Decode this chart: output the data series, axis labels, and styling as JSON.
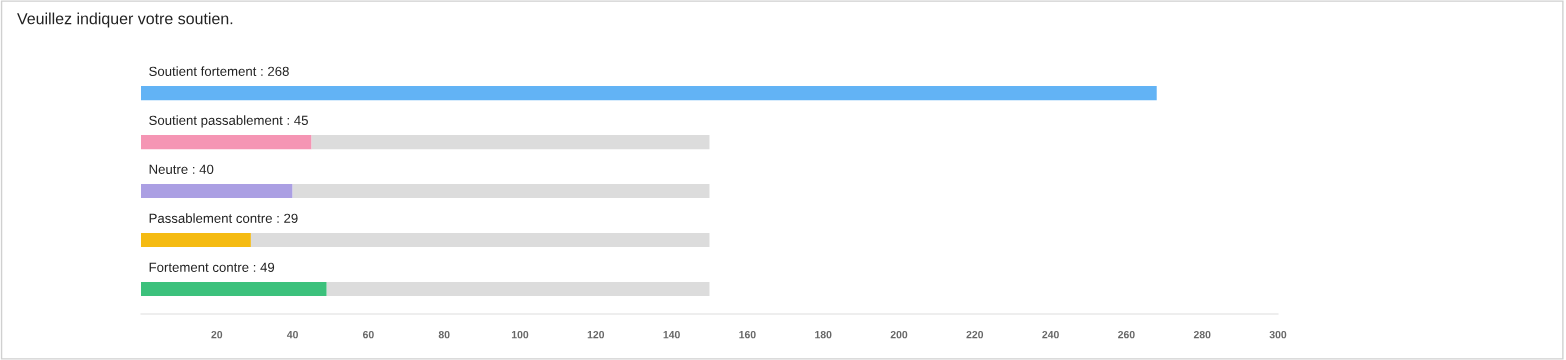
{
  "chart_data": {
    "type": "bar",
    "orientation": "horizontal",
    "title": "Veuillez indiquer votre soutien.",
    "categories": [
      "Soutient fortement : 268",
      "Soutient passablement : 45",
      "Neutre : 40",
      "Passablement contre : 29",
      "Fortement contre : 49"
    ],
    "series": [
      {
        "colors": [
          "#62b3f5",
          "#f595b4",
          "#ab9fe3",
          "#f5bb12",
          "#3cc17c"
        ],
        "values": [
          268,
          45,
          40,
          29,
          49
        ]
      },
      {
        "color": "#dcdcdc",
        "values": [
          null,
          105,
          110,
          121,
          101
        ]
      }
    ],
    "stacked": true,
    "xlim": [
      0,
      300
    ],
    "xticks": [
      20,
      40,
      60,
      80,
      100,
      120,
      140,
      160,
      180,
      200,
      220,
      240,
      260,
      280,
      300
    ],
    "tick_labels": "x",
    "grid": false
  }
}
